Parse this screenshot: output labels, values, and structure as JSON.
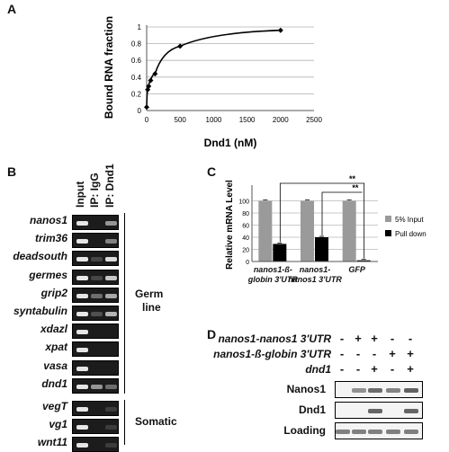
{
  "panels": {
    "a": "A",
    "b": "B",
    "c": "C",
    "d": "D"
  },
  "chart_data": [
    {
      "type": "line",
      "xlabel": "Dnd1 (nM)",
      "ylabel": "Bound RNA fraction",
      "xlim": [
        0,
        2500
      ],
      "ylim": [
        0,
        1
      ],
      "x_ticks": [
        "0",
        "500",
        "1000",
        "1500",
        "2000",
        "2500"
      ],
      "y_ticks": [
        "0",
        "0.2",
        "0.4",
        "0.6",
        "0.8",
        "1"
      ],
      "grid": true,
      "x": [
        0,
        15,
        30,
        60,
        125,
        500,
        2000
      ],
      "y": [
        0.04,
        0.25,
        0.29,
        0.36,
        0.44,
        0.77,
        0.96
      ]
    },
    {
      "type": "bar",
      "ylabel": "Relative mRNA Level",
      "categories": [
        "nanos1-ß-globin 3'UTR",
        "nanos1-nanos1 3'UTR",
        "GFP"
      ],
      "ylim": [
        0,
        120
      ],
      "y_ticks": [
        "0",
        "20",
        "40",
        "60",
        "80",
        "100"
      ],
      "grid": true,
      "legend": "right",
      "series": [
        {
          "name": "5% Input",
          "values": [
            100,
            100,
            100
          ]
        },
        {
          "name": "Pull down",
          "values": [
            29,
            40,
            2
          ]
        }
      ],
      "annotations": [
        "**",
        "**"
      ]
    }
  ],
  "colors": {
    "input": "#9a9a9a",
    "pulldown": "#000000",
    "line": "#000000"
  },
  "gel_b": {
    "columns": [
      "Input",
      "IP: IgG",
      "IP: Dnd1"
    ],
    "germ_label_1": "Germ",
    "germ_label_2": "line",
    "somatic_label": "Somatic",
    "rows": [
      {
        "gene": "nanos1",
        "bands": [
          0.95,
          0.0,
          0.55
        ]
      },
      {
        "gene": "trim36",
        "bands": [
          0.95,
          0.0,
          0.45
        ]
      },
      {
        "gene": "deadsouth",
        "bands": [
          0.95,
          0.15,
          0.9
        ]
      },
      {
        "gene": "germes",
        "bands": [
          0.95,
          0.15,
          0.8
        ]
      },
      {
        "gene": "grip2",
        "bands": [
          0.95,
          0.35,
          0.65
        ]
      },
      {
        "gene": "syntabulin",
        "bands": [
          0.95,
          0.2,
          0.7
        ]
      },
      {
        "gene": "xdazl",
        "bands": [
          0.95,
          0.0,
          0.0
        ]
      },
      {
        "gene": "xpat",
        "bands": [
          0.95,
          0.0,
          0.0
        ]
      },
      {
        "gene": "vasa",
        "bands": [
          0.95,
          0.0,
          0.0
        ]
      },
      {
        "gene": "dnd1",
        "bands": [
          0.95,
          0.55,
          0.35
        ]
      },
      {
        "gene": "vegT",
        "bands": [
          0.95,
          0.0,
          0.1
        ]
      },
      {
        "gene": "vg1",
        "bands": [
          0.95,
          0.0,
          0.1
        ]
      },
      {
        "gene": "wnt11",
        "bands": [
          0.95,
          0.0,
          0.1
        ]
      }
    ]
  },
  "panel_d": {
    "conditions": [
      {
        "label": "nanos1-nanos1 3'UTR",
        "signs": [
          "-",
          "+",
          "+",
          "-",
          "-"
        ]
      },
      {
        "label": "nanos1-ß-globin 3'UTR",
        "signs": [
          "-",
          "-",
          "-",
          "+",
          "+"
        ]
      },
      {
        "label": "dnd1",
        "signs": [
          "-",
          "-",
          "+",
          "-",
          "+"
        ]
      }
    ],
    "blots": [
      {
        "label": "Nanos1",
        "bands": [
          0.0,
          0.45,
          0.75,
          0.55,
          0.85
        ]
      },
      {
        "label": "Dnd1",
        "bands": [
          0.0,
          0.0,
          0.8,
          0.0,
          0.8
        ]
      },
      {
        "label": "Loading",
        "bands": [
          0.6,
          0.6,
          0.6,
          0.6,
          0.6
        ]
      }
    ]
  }
}
